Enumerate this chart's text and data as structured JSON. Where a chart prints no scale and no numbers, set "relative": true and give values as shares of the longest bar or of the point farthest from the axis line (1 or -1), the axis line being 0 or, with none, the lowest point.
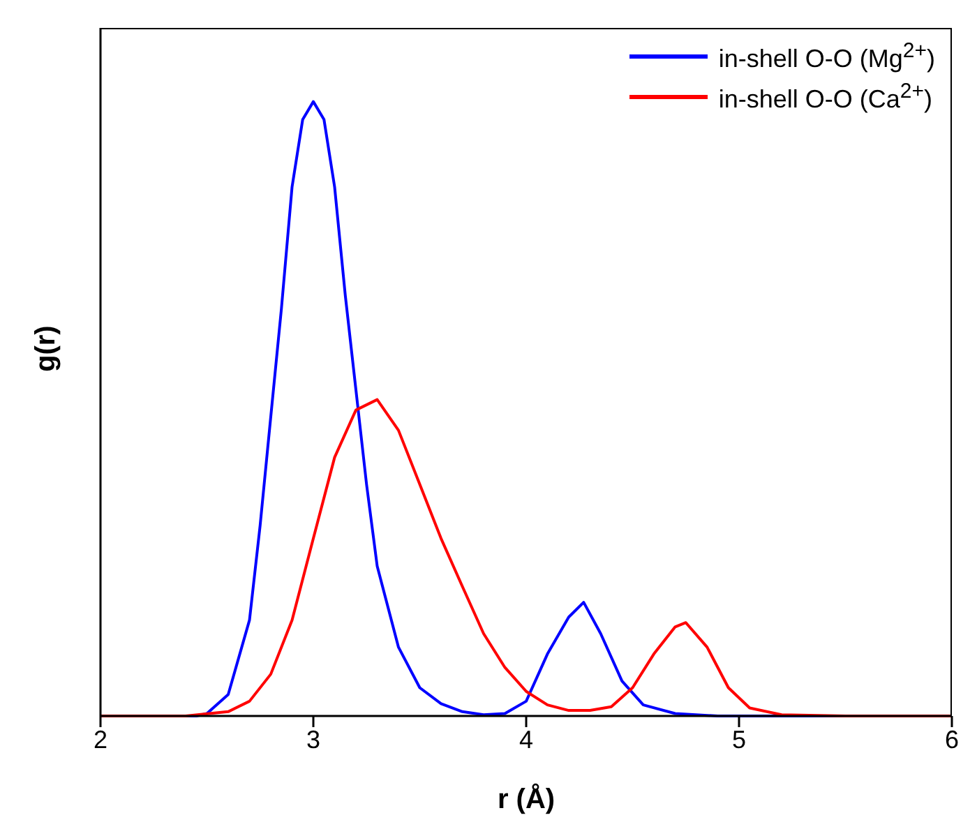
{
  "chart_data": {
    "type": "line",
    "xlabel": "r (Å)",
    "ylabel": "g(r)",
    "relative": true,
    "xlim": [
      2,
      6
    ],
    "xticks": [
      2,
      3,
      4,
      5,
      6
    ],
    "legend": "top right",
    "grid": false,
    "marker": "none",
    "line_style": "solid",
    "series": [
      {
        "name": "in-shell O-O (Mg$^{2+}$)",
        "color": "#0000ff",
        "x": [
          2.0,
          2.45,
          2.5,
          2.6,
          2.7,
          2.75,
          2.8,
          2.85,
          2.9,
          2.95,
          3.0,
          3.05,
          3.1,
          3.15,
          3.2,
          3.25,
          3.3,
          3.4,
          3.5,
          3.6,
          3.7,
          3.8,
          3.9,
          4.0,
          4.1,
          4.2,
          4.27,
          4.35,
          4.45,
          4.55,
          4.7,
          4.9,
          6.0
        ],
        "values": [
          0,
          0,
          0.004,
          0.035,
          0.156,
          0.31,
          0.487,
          0.663,
          0.861,
          0.971,
          1.0,
          0.971,
          0.861,
          0.685,
          0.531,
          0.377,
          0.244,
          0.112,
          0.046,
          0.02,
          0.007,
          0.002,
          0.004,
          0.024,
          0.101,
          0.161,
          0.185,
          0.134,
          0.057,
          0.018,
          0.004,
          0,
          0
        ]
      },
      {
        "name": "in-shell O-O (Ca$^{2+}$)",
        "color": "#ff0000",
        "x": [
          2.0,
          2.4,
          2.6,
          2.7,
          2.8,
          2.9,
          3.0,
          3.1,
          3.2,
          3.3,
          3.4,
          3.5,
          3.6,
          3.7,
          3.8,
          3.9,
          4.0,
          4.1,
          4.2,
          4.3,
          4.4,
          4.5,
          4.6,
          4.7,
          4.75,
          4.85,
          4.95,
          5.05,
          5.2,
          5.5,
          6.0
        ],
        "values": [
          0,
          0,
          0.007,
          0.024,
          0.068,
          0.156,
          0.289,
          0.421,
          0.498,
          0.515,
          0.465,
          0.377,
          0.289,
          0.211,
          0.134,
          0.079,
          0.04,
          0.018,
          0.009,
          0.009,
          0.015,
          0.046,
          0.101,
          0.145,
          0.152,
          0.112,
          0.046,
          0.013,
          0.002,
          0,
          0
        ]
      }
    ]
  }
}
